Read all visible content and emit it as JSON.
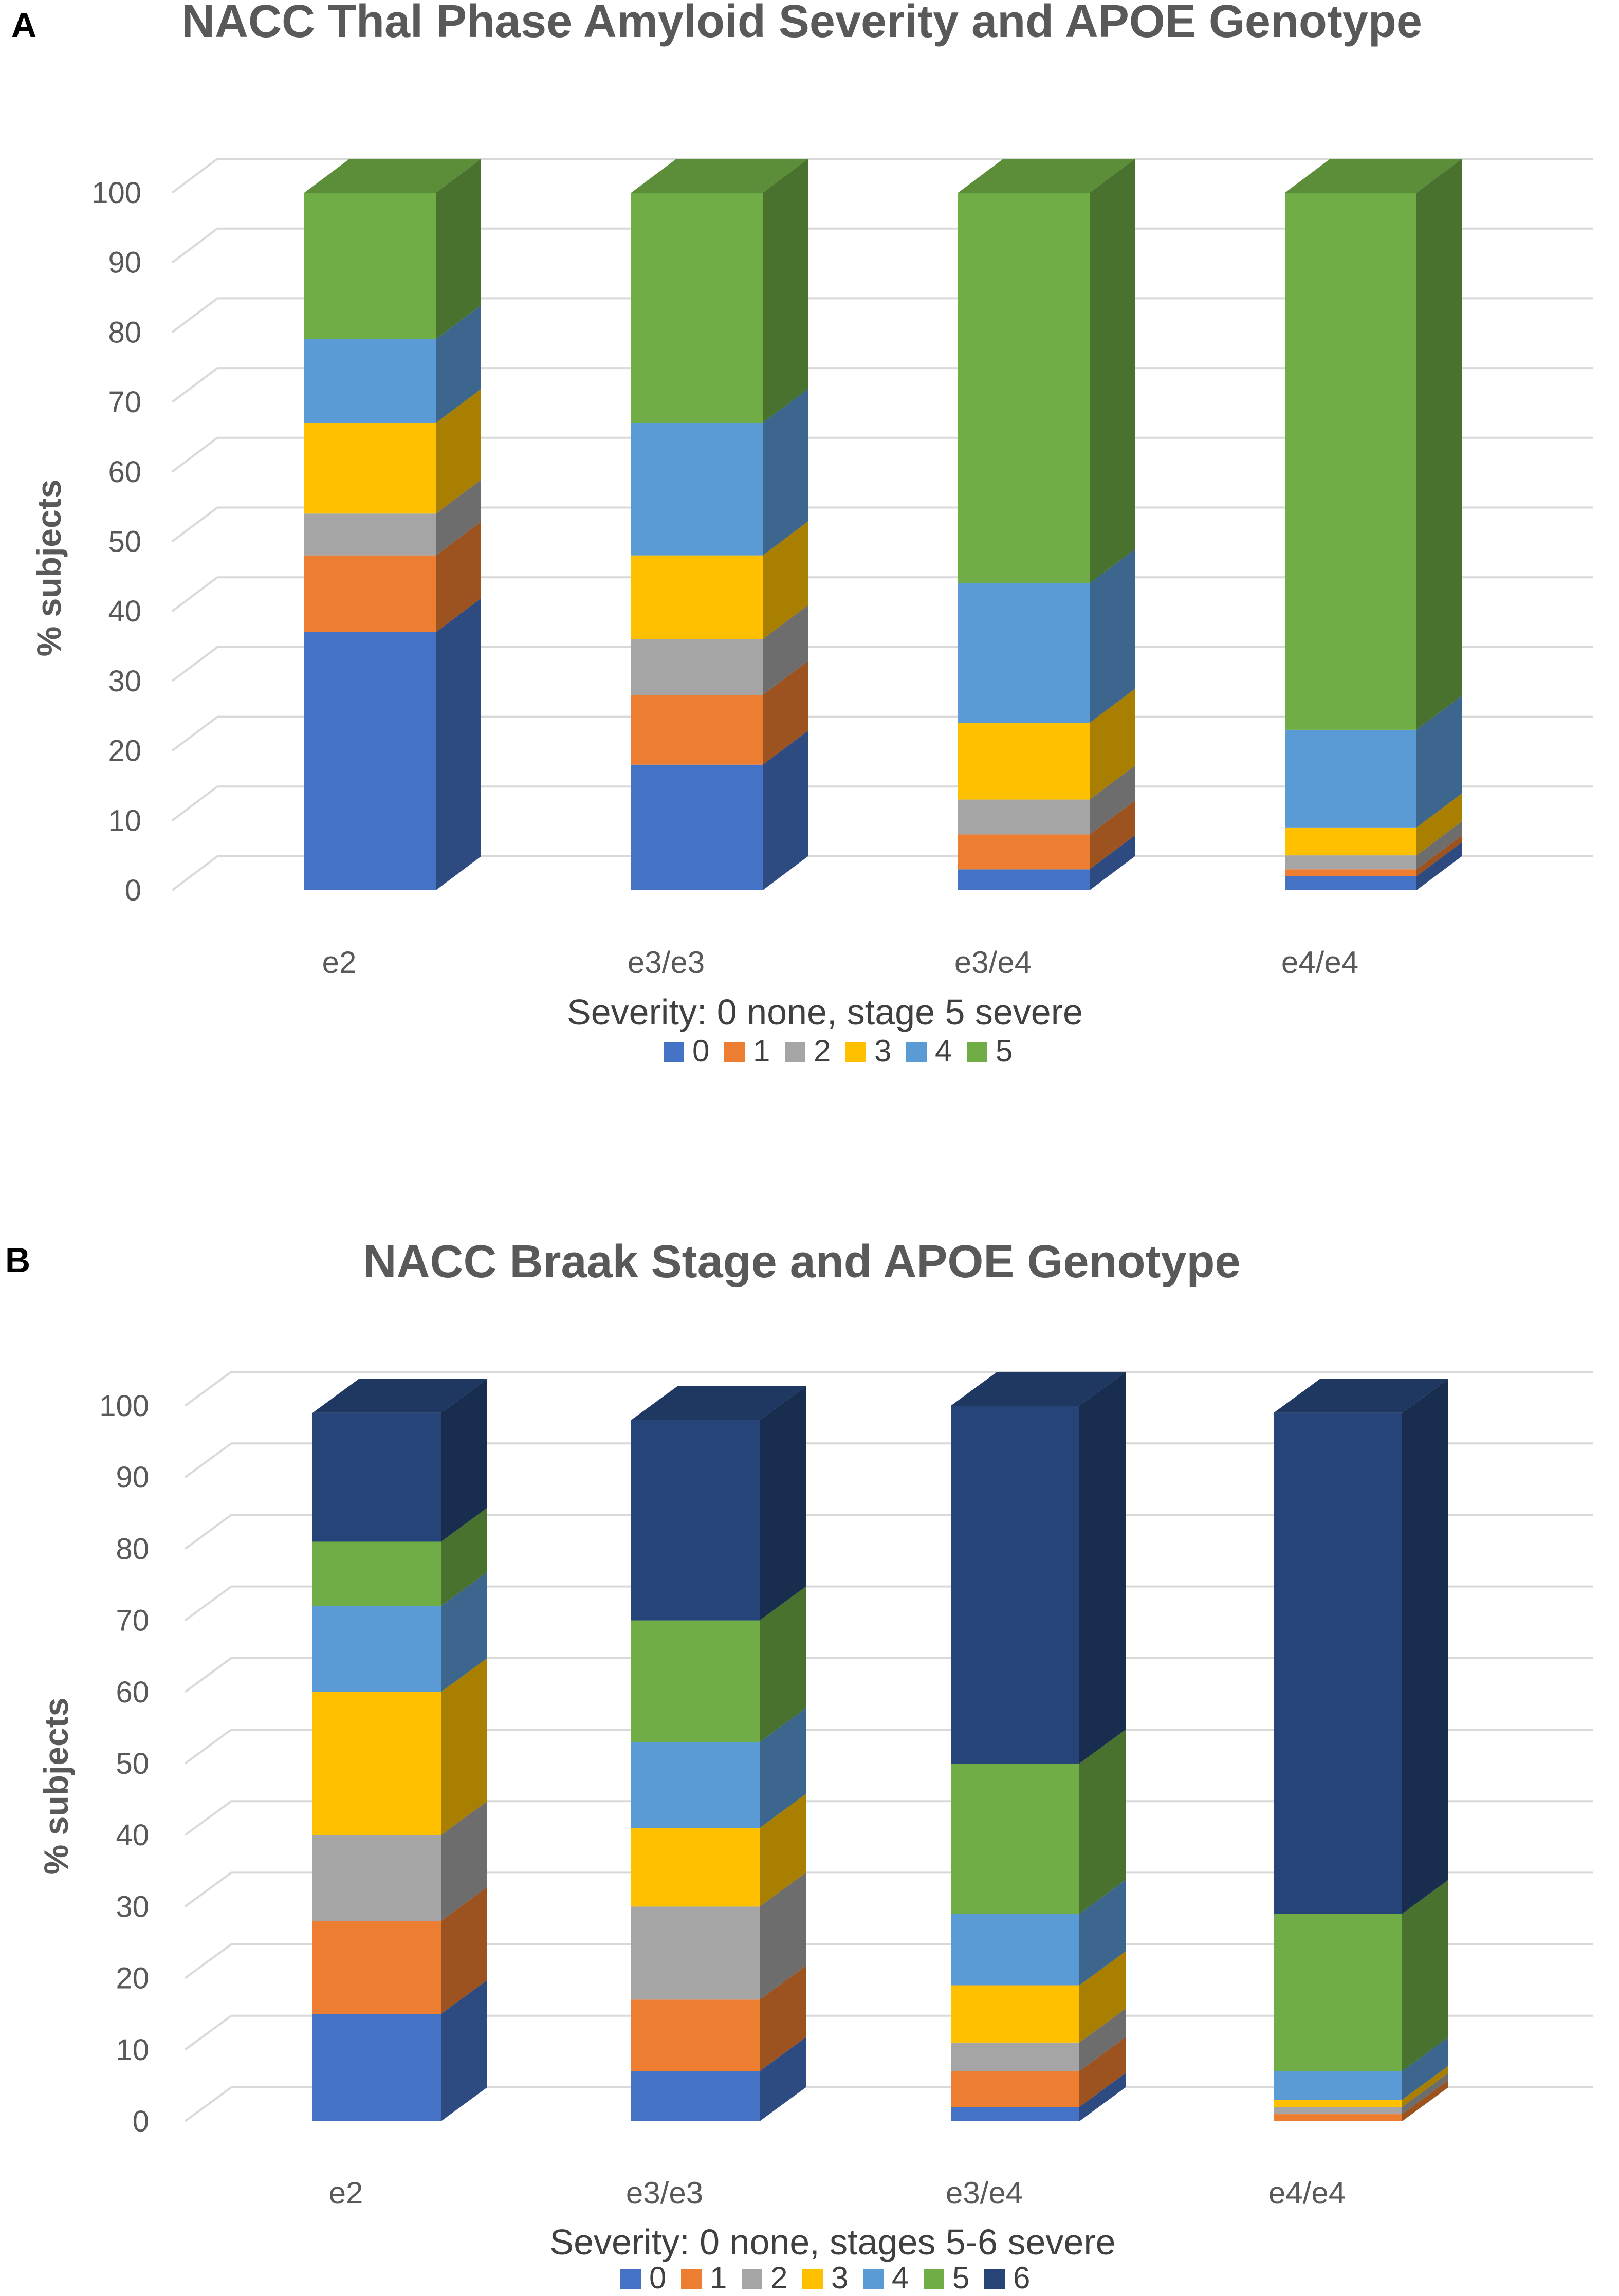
{
  "figure": {
    "panels": [
      "A",
      "B"
    ]
  },
  "colors": {
    "0": "#4472C4",
    "1": "#ED7D31",
    "2": "#A5A5A5",
    "3": "#FFC000",
    "4": "#5B9BD5",
    "5": "#70AD47",
    "6": "#264478",
    "grid": "#D9D9D9"
  },
  "chart_data": [
    {
      "type": "bar",
      "panel": "A",
      "title": "NACC Thal Phase Amyloid Severity and APOE Genotype",
      "ylabel": "% subjects",
      "xlabel": "Severity: 0 none, stage 5 severe",
      "ylim": [
        0,
        100
      ],
      "yticks": [
        0,
        10,
        20,
        30,
        40,
        50,
        60,
        70,
        80,
        90,
        100
      ],
      "categories": [
        "e2",
        "e3/e3",
        "e3/e4",
        "e4/e4"
      ],
      "stacked": true,
      "grid": true,
      "legend_position": "bottom",
      "series": [
        {
          "name": "0",
          "values": [
            37,
            18,
            3,
            2
          ]
        },
        {
          "name": "1",
          "values": [
            11,
            10,
            5,
            1
          ]
        },
        {
          "name": "2",
          "values": [
            6,
            8,
            5,
            2
          ]
        },
        {
          "name": "3",
          "values": [
            13,
            12,
            11,
            4
          ]
        },
        {
          "name": "4",
          "values": [
            12,
            19,
            20,
            14
          ]
        },
        {
          "name": "5",
          "values": [
            21,
            33,
            56,
            77
          ]
        }
      ]
    },
    {
      "type": "bar",
      "panel": "B",
      "title": "NACC Braak Stage and APOE Genotype",
      "ylabel": "% subjects",
      "xlabel": "Severity: 0 none, stages 5-6 severe",
      "ylim": [
        0,
        100
      ],
      "yticks": [
        0,
        10,
        20,
        30,
        40,
        50,
        60,
        70,
        80,
        90,
        100
      ],
      "categories": [
        "e2",
        "e3/e3",
        "e3/e4",
        "e4/e4"
      ],
      "stacked": true,
      "grid": true,
      "legend_position": "bottom",
      "series": [
        {
          "name": "0",
          "values": [
            15,
            7,
            2,
            0
          ]
        },
        {
          "name": "1",
          "values": [
            13,
            10,
            5,
            1
          ]
        },
        {
          "name": "2",
          "values": [
            12,
            13,
            4,
            1
          ]
        },
        {
          "name": "3",
          "values": [
            20,
            11,
            8,
            1
          ]
        },
        {
          "name": "4",
          "values": [
            12,
            12,
            10,
            4
          ]
        },
        {
          "name": "5",
          "values": [
            9,
            17,
            21,
            22
          ]
        },
        {
          "name": "6",
          "values": [
            18,
            28,
            50,
            70
          ]
        }
      ]
    }
  ]
}
